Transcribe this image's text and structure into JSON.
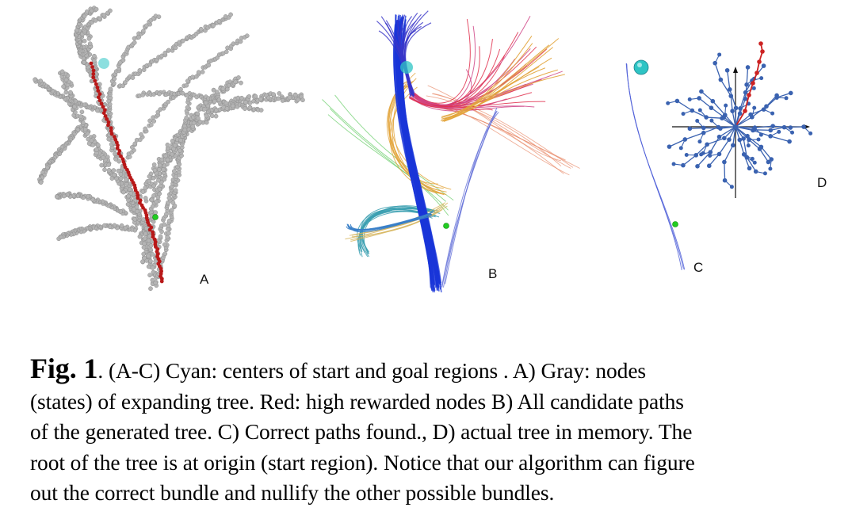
{
  "figure": {
    "panels": [
      {
        "id": "A",
        "label": "A"
      },
      {
        "id": "B",
        "label": "B"
      },
      {
        "id": "C",
        "label": "C"
      },
      {
        "id": "D",
        "label": "D"
      }
    ],
    "colors": {
      "tree_nodes": "#b4b4b4",
      "rewarded_nodes": "#b81818",
      "start_goal_center": "#2ec4c4",
      "goal_point": "#22cc22",
      "path_blue": "#1a35d8",
      "path_red": "#e0304e",
      "path_orange": "#e2a43a",
      "path_teal": "#3a9fb0",
      "tree_memory_nodes": "#3a62b0",
      "tree_memory_highlight": "#cc2222"
    }
  },
  "caption": {
    "label": "Fig. 1",
    "lines": [
      ". (A-C) Cyan: centers of start and goal regions . A) Gray: nodes",
      "(states) of expanding tree. Red: high rewarded nodes B) All candidate paths",
      "of the generated tree. C) Correct paths found., D) actual tree in memory. The",
      "root of the tree is at origin (start region). Notice that our algorithm can figure",
      "out the correct bundle and nullify the other possible bundles."
    ]
  }
}
